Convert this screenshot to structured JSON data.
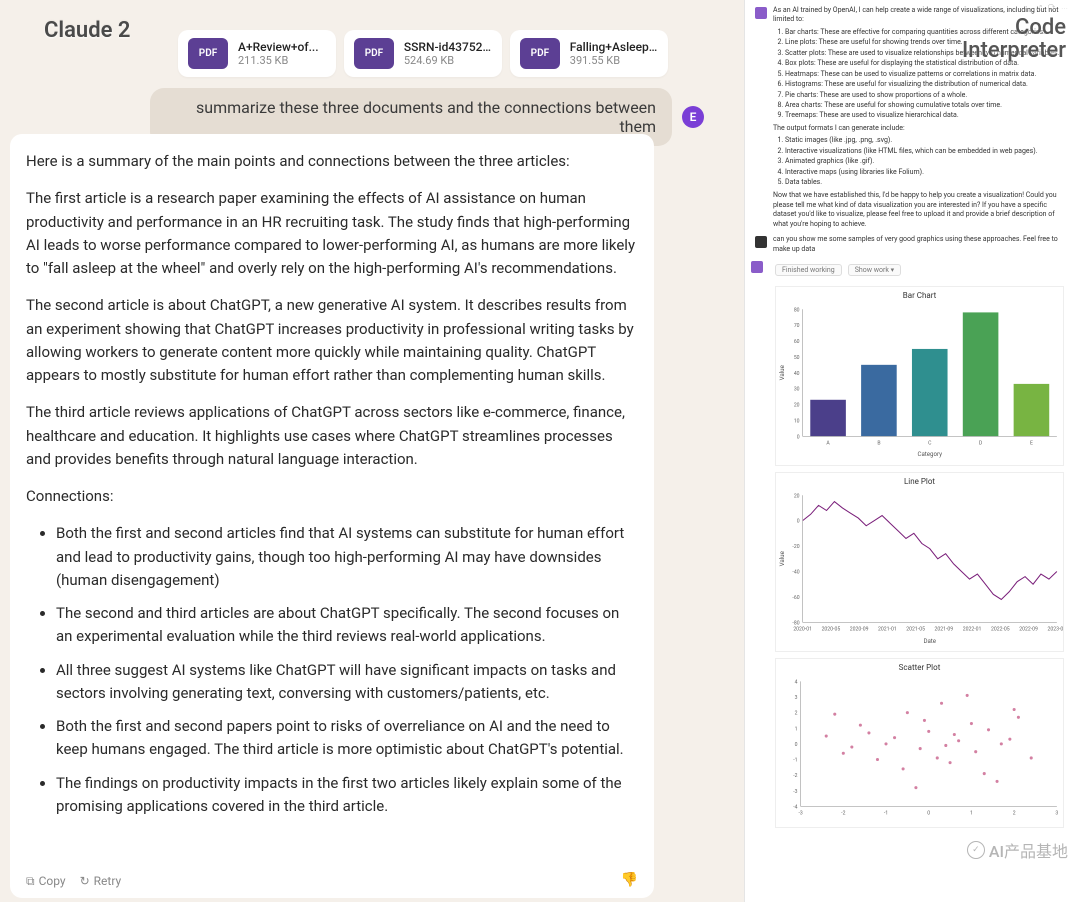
{
  "left": {
    "title": "Claude 2",
    "files": [
      {
        "name": "A+Review+of...",
        "size": "211.35 KB",
        "badge": "PDF"
      },
      {
        "name": "SSRN-id43752...",
        "size": "524.69 KB",
        "badge": "PDF"
      },
      {
        "name": "Falling+Asleep...",
        "size": "391.55 KB",
        "badge": "PDF"
      }
    ],
    "prompt": "summarize these three documents and the connections between them",
    "avatar_initial": "E",
    "response": {
      "intro": "Here is a summary of the main points and connections between the three articles:",
      "p1": "The first article is a research paper examining the effects of AI assistance on human productivity and performance in an HR recruiting task. The study finds that high-performing AI leads to worse performance compared to lower-performing AI, as humans are more likely to \"fall asleep at the wheel\" and overly rely on the high-performing AI's recommendations.",
      "p2": "The second article is about ChatGPT, a new generative AI system. It describes results from an experiment showing that ChatGPT increases productivity in professional writing tasks by allowing workers to generate content more quickly while maintaining quality. ChatGPT appears to mostly substitute for human effort rather than complementing human skills.",
      "p3": "The third article reviews applications of ChatGPT across sectors like e-commerce, finance, healthcare and education. It highlights use cases where ChatGPT streamlines processes and provides benefits through natural language interaction.",
      "connections_label": "Connections:",
      "bullets": [
        "Both the first and second articles find that AI systems can substitute for human effort and lead to productivity gains, though too high-performing AI may have downsides (human disengagement)",
        "The second and third articles are about ChatGPT specifically. The second focuses on an experimental evaluation while the third reviews real-world applications.",
        "All three suggest AI systems like ChatGPT will have significant impacts on tasks and sectors involving generating text, conversing with customers/patients, etc.",
        "Both the first and second papers point to risks of overreliance on AI and the need to keep humans engaged. The third article is more optimistic about ChatGPT's potential.",
        "The findings on productivity impacts in the first two articles likely explain some of the promising applications covered in the third article."
      ]
    },
    "footer": {
      "copy": "Copy",
      "retry": "Retry"
    }
  },
  "right": {
    "title_line1": "Code",
    "title_line2": "Interpreter",
    "bot_intro": "As an AI trained by OpenAI, I can help create a wide range of visualizations, including but not limited to:",
    "viz_list": [
      "Bar charts: These are effective for comparing quantities across different categories.",
      "Line plots: These are useful for showing trends over time.",
      "Scatter plots: These are used to visualize relationships between two numerical variables.",
      "Box plots: These are useful for displaying the statistical distribution of data.",
      "Heatmaps: These can be used to visualize patterns or correlations in matrix data.",
      "Histograms: These are useful for visualizing the distribution of numerical data.",
      "Pie charts: These are used to show proportions of a whole.",
      "Area charts: These are useful for showing cumulative totals over time.",
      "Treemaps: These are used to visualize hierarchical data."
    ],
    "formats_label": "The output formats I can generate include:",
    "formats_list": [
      "Static images (like .jpg, .png, .svg).",
      "Interactive visualizations (like HTML files, which can be embedded in web pages).",
      "Animated graphics (like .gif).",
      "Interactive maps (using libraries like Folium).",
      "Data tables."
    ],
    "bot_outro": "Now that we have established this, I'd be happy to help you create a visualization! Could you please tell me what kind of data visualization you are interested in? If you have a specific dataset you'd like to visualize, please feel free to upload it and provide a brief description of what you're hoping to achieve.",
    "user_msg": "can you show me some samples of very good graphics using these approaches. Feel free to make up data",
    "tabs": {
      "a": "Finished working",
      "b": "Show work ▾"
    },
    "bar_chart": {
      "title": "Bar Chart",
      "categories": [
        "A",
        "B",
        "C",
        "D",
        "E"
      ],
      "values": [
        23,
        45,
        55,
        78,
        33
      ],
      "colors": [
        "#4b3f8a",
        "#3a6aa0",
        "#2f8f8f",
        "#4aa255",
        "#78b442"
      ],
      "ylim": [
        0,
        80
      ],
      "ytick_step": 10,
      "xlabel": "Category",
      "ylabel": "Value",
      "label_fontsize": 6
    },
    "line_chart": {
      "title": "Line Plot",
      "xlabel": "Date",
      "ylabel": "Value",
      "ylim": [
        -80,
        20
      ],
      "ytick_step": 20,
      "color": "#7a1f7a",
      "xticks": [
        "2020-01",
        "2020-05",
        "2020-09",
        "2021-01",
        "2021-05",
        "2021-09",
        "2022-01",
        "2022-05",
        "2022-09",
        "2023-01"
      ],
      "series": [
        0,
        5,
        12,
        8,
        15,
        10,
        6,
        2,
        -4,
        0,
        4,
        -2,
        -8,
        -14,
        -10,
        -18,
        -22,
        -30,
        -26,
        -34,
        -40,
        -46,
        -42,
        -50,
        -58,
        -62,
        -56,
        -48,
        -44,
        -50,
        -42,
        -46,
        -40
      ]
    },
    "scatter_chart": {
      "title": "Scatter Plot",
      "ylim": [
        -4,
        4
      ],
      "xlim": [
        -3,
        3
      ],
      "color": "#c04a7a",
      "points": [
        [
          -2.4,
          0.5
        ],
        [
          -2.0,
          -0.6
        ],
        [
          -1.6,
          1.2
        ],
        [
          -1.2,
          -1.0
        ],
        [
          -0.8,
          0.4
        ],
        [
          -0.5,
          2.0
        ],
        [
          -0.2,
          -0.3
        ],
        [
          0.0,
          0.8
        ],
        [
          0.3,
          2.6
        ],
        [
          0.5,
          -1.2
        ],
        [
          0.7,
          0.2
        ],
        [
          0.9,
          3.1
        ],
        [
          1.1,
          -0.5
        ],
        [
          1.4,
          0.9
        ],
        [
          1.6,
          -2.4
        ],
        [
          1.9,
          0.3
        ],
        [
          2.1,
          1.7
        ],
        [
          2.4,
          -0.9
        ],
        [
          -1.0,
          0.0
        ],
        [
          -0.3,
          -2.8
        ],
        [
          0.2,
          -0.9
        ],
        [
          1.0,
          1.3
        ],
        [
          -1.8,
          -0.2
        ],
        [
          0.6,
          0.6
        ],
        [
          -0.6,
          -1.6
        ],
        [
          1.3,
          -1.9
        ],
        [
          2.0,
          2.2
        ],
        [
          -2.2,
          1.9
        ],
        [
          0.4,
          -0.1
        ],
        [
          -0.1,
          1.5
        ],
        [
          1.7,
          0.0
        ],
        [
          -1.4,
          0.7
        ]
      ]
    },
    "watermark": "AI产品基地"
  }
}
